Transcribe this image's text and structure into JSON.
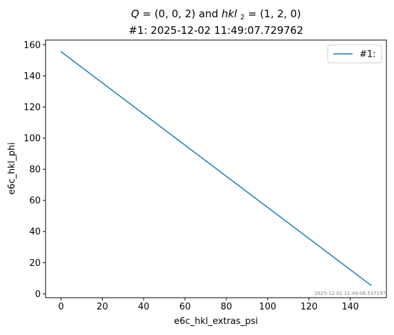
{
  "chart_data": {
    "type": "line",
    "title": {
      "q_lhs": "Q",
      "q_value": "(0, 0, 2)",
      "connector": "and",
      "hkl_main": "hkl",
      "hkl_sub": "2",
      "hkl_value": "(1, 2, 0)"
    },
    "subtitle": "#1: 2025-12-02 11:49:07.729762",
    "xlabel": "e6c_hkl_extras_psi",
    "ylabel": "e6c_hkl_phi",
    "xlim": [
      -7.5,
      157.5
    ],
    "ylim": [
      -2.5,
      163
    ],
    "x_ticks": [
      0,
      20,
      40,
      60,
      80,
      100,
      120,
      140
    ],
    "y_ticks": [
      0,
      20,
      40,
      60,
      80,
      100,
      120,
      140,
      160
    ],
    "grid": false,
    "legend_position": "top-right",
    "series": [
      {
        "name": "#1:",
        "color": "#1f77b4",
        "x": [
          0,
          150
        ],
        "y": [
          155.5,
          5.5
        ]
      }
    ],
    "timestamp": "2025-12-02 11:49:08.537197"
  }
}
